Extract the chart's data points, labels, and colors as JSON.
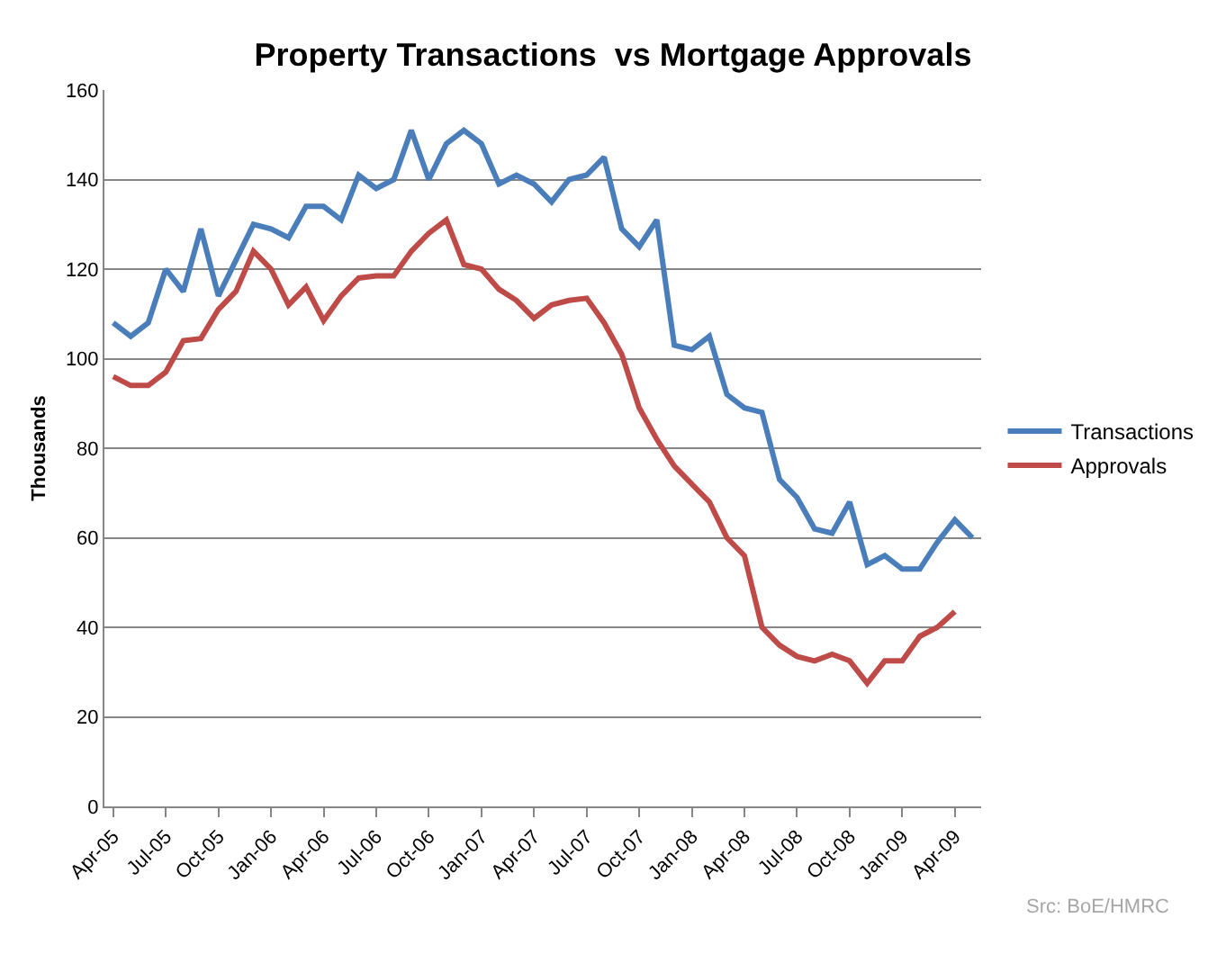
{
  "chart_data": {
    "type": "line",
    "title": "Property Transactions  vs Mortgage Approvals",
    "ylabel": "Thousands",
    "categories": [
      "Apr-05",
      null,
      null,
      "Jul-05",
      null,
      null,
      "Oct-05",
      null,
      null,
      "Jan-06",
      null,
      null,
      "Apr-06",
      null,
      null,
      "Jul-06",
      null,
      null,
      "Oct-06",
      null,
      null,
      "Jan-07",
      null,
      null,
      "Apr-07",
      null,
      null,
      "Jul-07",
      null,
      null,
      "Oct-07",
      null,
      null,
      "Jan-08",
      null,
      null,
      "Apr-08",
      null,
      null,
      "Jul-08",
      null,
      null,
      "Oct-08",
      null,
      null,
      "Jan-09",
      null,
      null,
      "Apr-09",
      null
    ],
    "series": [
      {
        "name": "Transactions",
        "color": "#4a7ebb",
        "values": [
          108,
          105,
          108,
          120,
          115,
          129,
          114,
          122,
          130,
          129,
          127,
          134,
          134,
          131,
          141,
          138,
          140,
          151,
          140,
          148,
          151,
          148,
          139,
          141,
          139,
          135,
          140,
          141,
          145,
          129,
          125,
          131,
          103,
          102,
          105,
          92,
          89,
          88,
          73,
          69,
          62,
          61,
          68,
          54,
          56,
          53,
          53,
          59,
          64,
          60
        ]
      },
      {
        "name": "Approvals",
        "color": "#be4b48",
        "values": [
          96,
          94,
          94,
          97,
          104,
          104.5,
          111,
          115,
          124,
          120,
          112,
          116,
          108.5,
          114,
          118,
          118.5,
          118.5,
          124,
          128,
          131,
          121,
          120,
          115.5,
          113,
          109,
          112,
          113,
          113.5,
          108,
          101,
          89,
          82,
          76,
          72,
          68,
          60,
          56,
          40,
          36,
          33.5,
          32.5,
          34,
          32.5,
          27.5,
          32.5,
          32.5,
          38,
          40,
          43.5,
          null
        ]
      }
    ],
    "ylim": [
      0,
      160
    ],
    "yticks": [
      0,
      20,
      40,
      60,
      80,
      100,
      120,
      140,
      160
    ],
    "grid": "y",
    "legend": "right",
    "marker": "none",
    "line_style": "solid",
    "annotations": [
      "Src: BoE/HMRC"
    ]
  }
}
